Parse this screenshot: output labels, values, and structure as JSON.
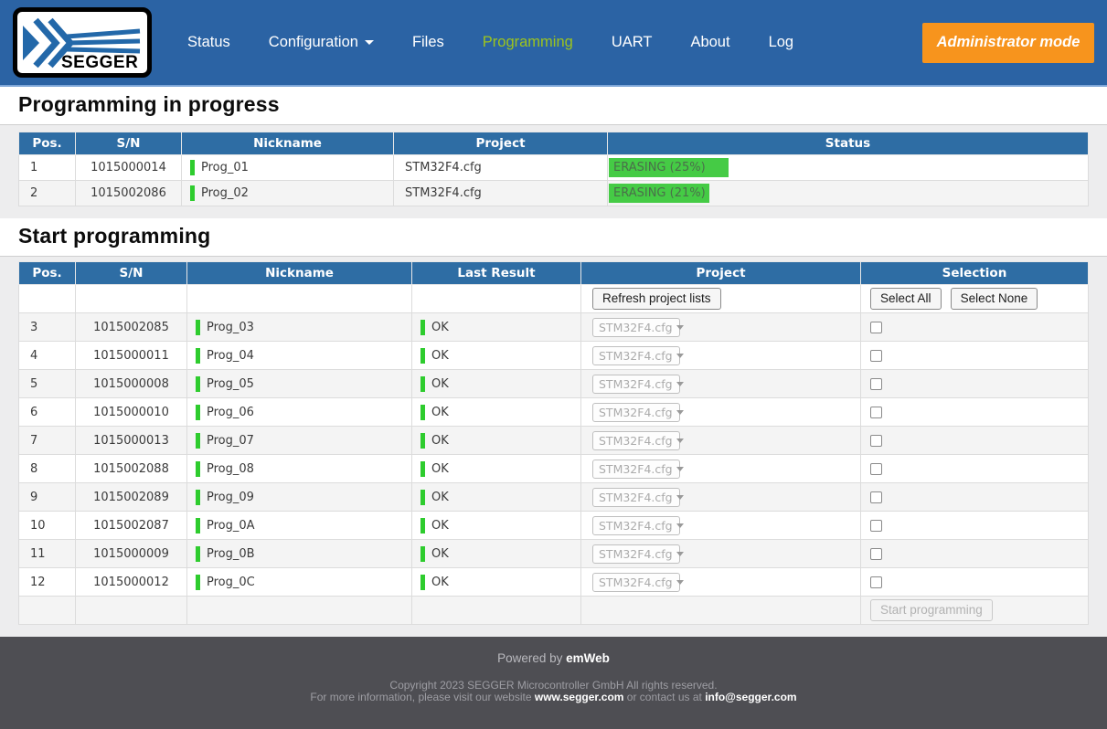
{
  "nav": {
    "brand": "SEGGER",
    "items": [
      {
        "label": "Status",
        "active": false,
        "dropdown": false
      },
      {
        "label": "Configuration",
        "active": false,
        "dropdown": true
      },
      {
        "label": "Files",
        "active": false,
        "dropdown": false
      },
      {
        "label": "Programming",
        "active": true,
        "dropdown": false
      },
      {
        "label": "UART",
        "active": false,
        "dropdown": false
      },
      {
        "label": "About",
        "active": false,
        "dropdown": false
      },
      {
        "label": "Log",
        "active": false,
        "dropdown": false
      }
    ],
    "admin_button": "Administrator mode"
  },
  "colors": {
    "nav_blue": "#2b63a4",
    "active_link_green": "#9dc41d",
    "admin_orange": "#f7941d",
    "table_header_blue": "#2e6da4",
    "progress_green": "#45cb45",
    "marker_green": "#2ecc2e",
    "footer_gray": "#4e4e53"
  },
  "section1": {
    "title": "Programming in progress",
    "table": {
      "headers": [
        "Pos.",
        "S/N",
        "Nickname",
        "Project",
        "Status"
      ],
      "rows": [
        {
          "pos": "1",
          "sn": "1015000014",
          "nickname": "Prog_01",
          "project": "STM32F4.cfg",
          "status": "ERASING (25%)",
          "progress": 25
        },
        {
          "pos": "2",
          "sn": "1015002086",
          "nickname": "Prog_02",
          "project": "STM32F4.cfg",
          "status": "ERASING (21%)",
          "progress": 21
        }
      ]
    }
  },
  "section2": {
    "title": "Start programming",
    "table": {
      "headers": [
        "Pos.",
        "S/N",
        "Nickname",
        "Last Result",
        "Project",
        "Selection"
      ],
      "toolbar": {
        "refresh": "Refresh project lists",
        "select_all": "Select All",
        "select_none": "Select None"
      },
      "rows": [
        {
          "pos": "3",
          "sn": "1015002085",
          "nickname": "Prog_03",
          "result": "OK",
          "project": "STM32F4.cfg"
        },
        {
          "pos": "4",
          "sn": "1015000011",
          "nickname": "Prog_04",
          "result": "OK",
          "project": "STM32F4.cfg"
        },
        {
          "pos": "5",
          "sn": "1015000008",
          "nickname": "Prog_05",
          "result": "OK",
          "project": "STM32F4.cfg"
        },
        {
          "pos": "6",
          "sn": "1015000010",
          "nickname": "Prog_06",
          "result": "OK",
          "project": "STM32F4.cfg"
        },
        {
          "pos": "7",
          "sn": "1015000013",
          "nickname": "Prog_07",
          "result": "OK",
          "project": "STM32F4.cfg"
        },
        {
          "pos": "8",
          "sn": "1015002088",
          "nickname": "Prog_08",
          "result": "OK",
          "project": "STM32F4.cfg"
        },
        {
          "pos": "9",
          "sn": "1015002089",
          "nickname": "Prog_09",
          "result": "OK",
          "project": "STM32F4.cfg"
        },
        {
          "pos": "10",
          "sn": "1015002087",
          "nickname": "Prog_0A",
          "result": "OK",
          "project": "STM32F4.cfg"
        },
        {
          "pos": "11",
          "sn": "1015000009",
          "nickname": "Prog_0B",
          "result": "OK",
          "project": "STM32F4.cfg"
        },
        {
          "pos": "12",
          "sn": "1015000012",
          "nickname": "Prog_0C",
          "result": "OK",
          "project": "STM32F4.cfg"
        }
      ],
      "start_button": "Start programming"
    }
  },
  "footer": {
    "powered_prefix": "Powered by",
    "powered_brand": "emWeb",
    "copyright_line": "Copyright 2023 SEGGER Microcontroller GmbH All rights reserved.",
    "info_prefix": "For more information, please visit our website",
    "website": "www.segger.com",
    "info_middle": "or contact us at",
    "email": "info@segger.com"
  }
}
